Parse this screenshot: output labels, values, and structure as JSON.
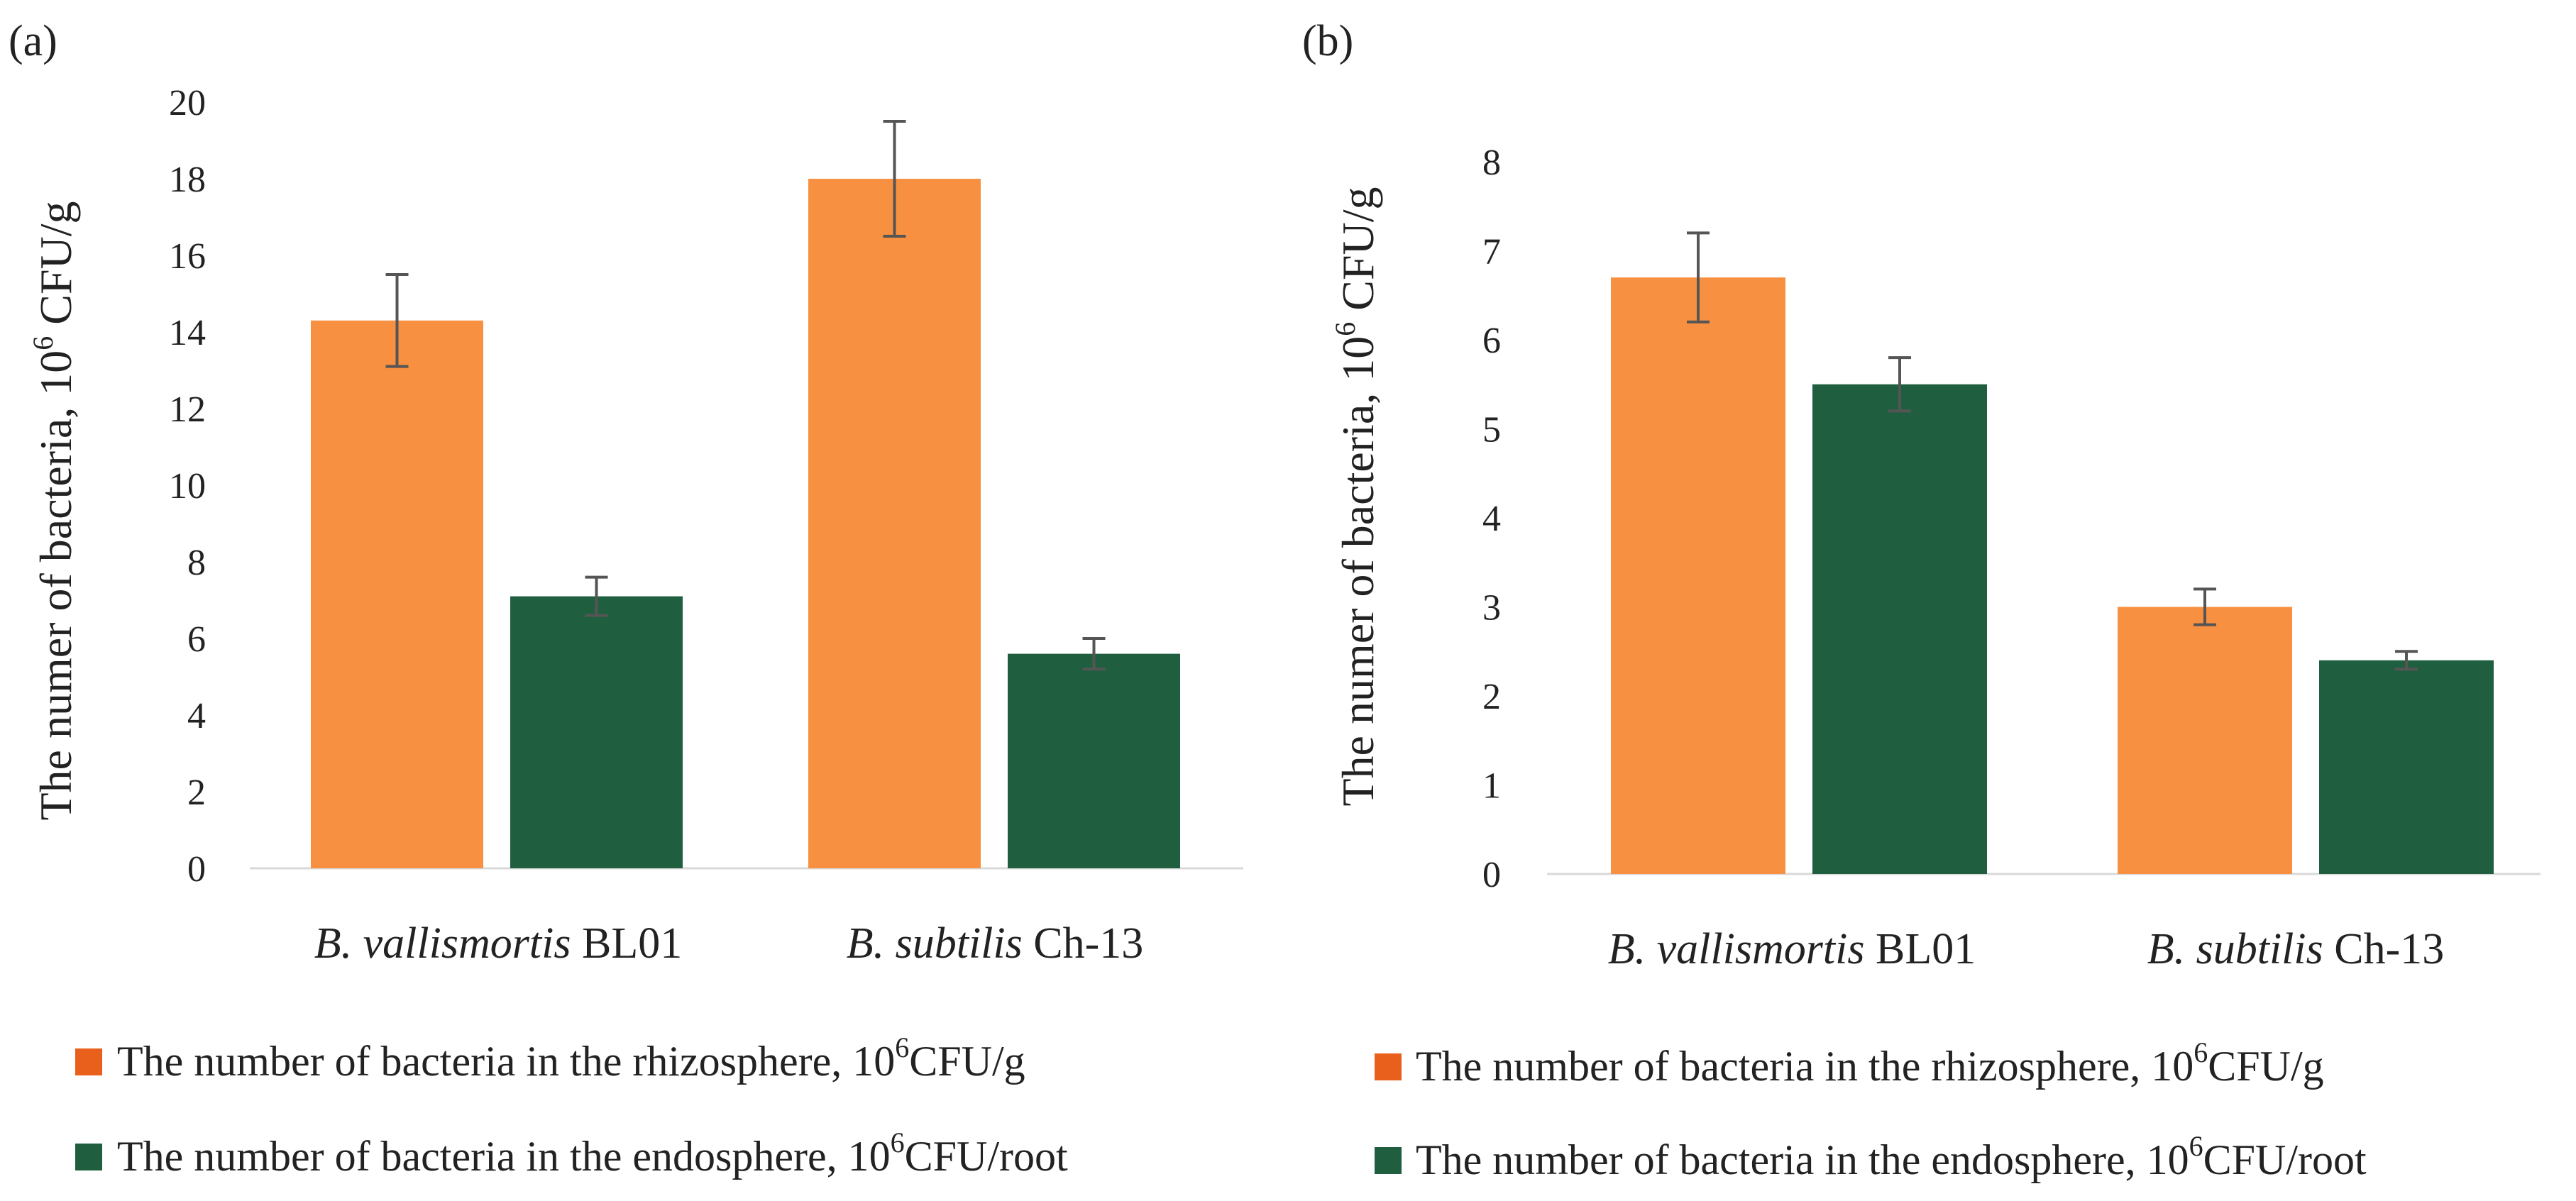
{
  "chart_data": [
    {
      "panel_label": "(a)",
      "type": "bar",
      "ylabel": {
        "main": "The numer of bacteria, 10",
        "exp": "6",
        "unit": " CFU/g"
      },
      "ylim": [
        0,
        20
      ],
      "ticks": [
        "0",
        "2",
        "4",
        "6",
        "8",
        "10",
        "12",
        "14",
        "16",
        "18",
        "20"
      ],
      "categories": [
        {
          "species": "B. vallismortis",
          "strain": " BL01"
        },
        {
          "species": "B. subtilis",
          "strain": " Ch-13"
        }
      ],
      "series": [
        {
          "name": "The number of bacteria in the rhizosphere, 10^6CFU/g",
          "color": "#F79040",
          "values": [
            14.3,
            18.0
          ],
          "errors": [
            1.2,
            1.5
          ]
        },
        {
          "name": "The number of bacteria in the endosphere, 10^6CFU/root",
          "color": "#1F5F3F",
          "values": [
            7.1,
            5.6
          ],
          "errors": [
            0.5,
            0.4
          ]
        }
      ],
      "legend": [
        {
          "text": "The number of bacteria in the rhizosphere, 10",
          "exp": "6",
          "unit": "CFU/g",
          "color": "#E8601C"
        },
        {
          "text": "The number of bacteria in the endosphere, 10",
          "exp": "6",
          "unit": "CFU/root",
          "color": "#1F5F3F"
        }
      ]
    },
    {
      "panel_label": "(b)",
      "type": "bar",
      "ylabel": {
        "main": "The numer of bacteria, 10",
        "exp": "6",
        "unit": " CFU/g"
      },
      "ylim": [
        0,
        8
      ],
      "ticks": [
        "0",
        "1",
        "2",
        "3",
        "4",
        "5",
        "6",
        "7",
        "8"
      ],
      "categories": [
        {
          "species": "B. vallismortis",
          "strain": " BL01"
        },
        {
          "species": "B. subtilis",
          "strain": " Ch-13"
        }
      ],
      "series": [
        {
          "name": "The number of bacteria in the rhizosphere, 10^6CFU/g",
          "color": "#F79040",
          "values": [
            6.7,
            3.0
          ],
          "errors": [
            0.5,
            0.2
          ]
        },
        {
          "name": "The number of bacteria in the endosphere, 10^6CFU/root",
          "color": "#1F5F3F",
          "values": [
            5.5,
            2.4
          ],
          "errors": [
            0.3,
            0.1
          ]
        }
      ],
      "legend": [
        {
          "text": "The number of bacteria in the rhizosphere, 10",
          "exp": "6",
          "unit": "CFU/g",
          "color": "#E8601C"
        },
        {
          "text": "The number of bacteria in the endosphere, 10",
          "exp": "6",
          "unit": "CFU/root",
          "color": "#1F5F3F"
        }
      ]
    }
  ]
}
